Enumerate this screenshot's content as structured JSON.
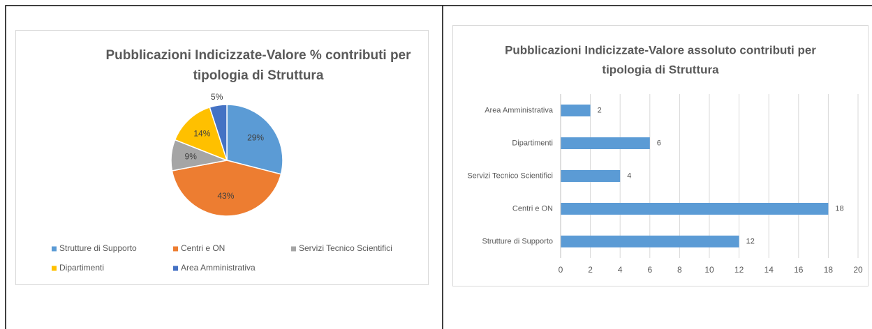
{
  "chart_data": [
    {
      "type": "pie",
      "title": "Pubblicazioni Indicizzate-Valore % contributi per tipologia di Struttura",
      "title_lines": [
        "Pubblicazioni Indicizzate-Valore % contributi per",
        "tipologia di Struttura"
      ],
      "categories": [
        "Strutture di Supporto",
        "Centri e ON",
        "Servizi Tecnico Scientifici",
        "Dipartimenti",
        "Area Amministrativa"
      ],
      "values": [
        29,
        43,
        9,
        14,
        5
      ],
      "value_labels": [
        "29%",
        "43%",
        "9%",
        "14%",
        "5%"
      ],
      "colors": [
        "#5b9bd5",
        "#ed7d31",
        "#a5a5a5",
        "#ffc000",
        "#4472c4"
      ],
      "legend": "bottom"
    },
    {
      "type": "hbar",
      "title_lines": [
        "Pubblicazioni Indicizzate-Valore assoluto contributi per",
        "tipologia di Struttura"
      ],
      "categories": [
        "Strutture di Supporto",
        "Centri e ON",
        "Servizi Tecnico Scientifici",
        "Dipartimenti",
        "Area Amministrativa"
      ],
      "values": [
        12,
        18,
        4,
        6,
        2
      ],
      "color": "#5b9bd5",
      "xlim": [
        0,
        20
      ],
      "xticks": [
        0,
        2,
        4,
        6,
        8,
        10,
        12,
        14,
        16,
        18,
        20
      ],
      "grid": true
    }
  ]
}
